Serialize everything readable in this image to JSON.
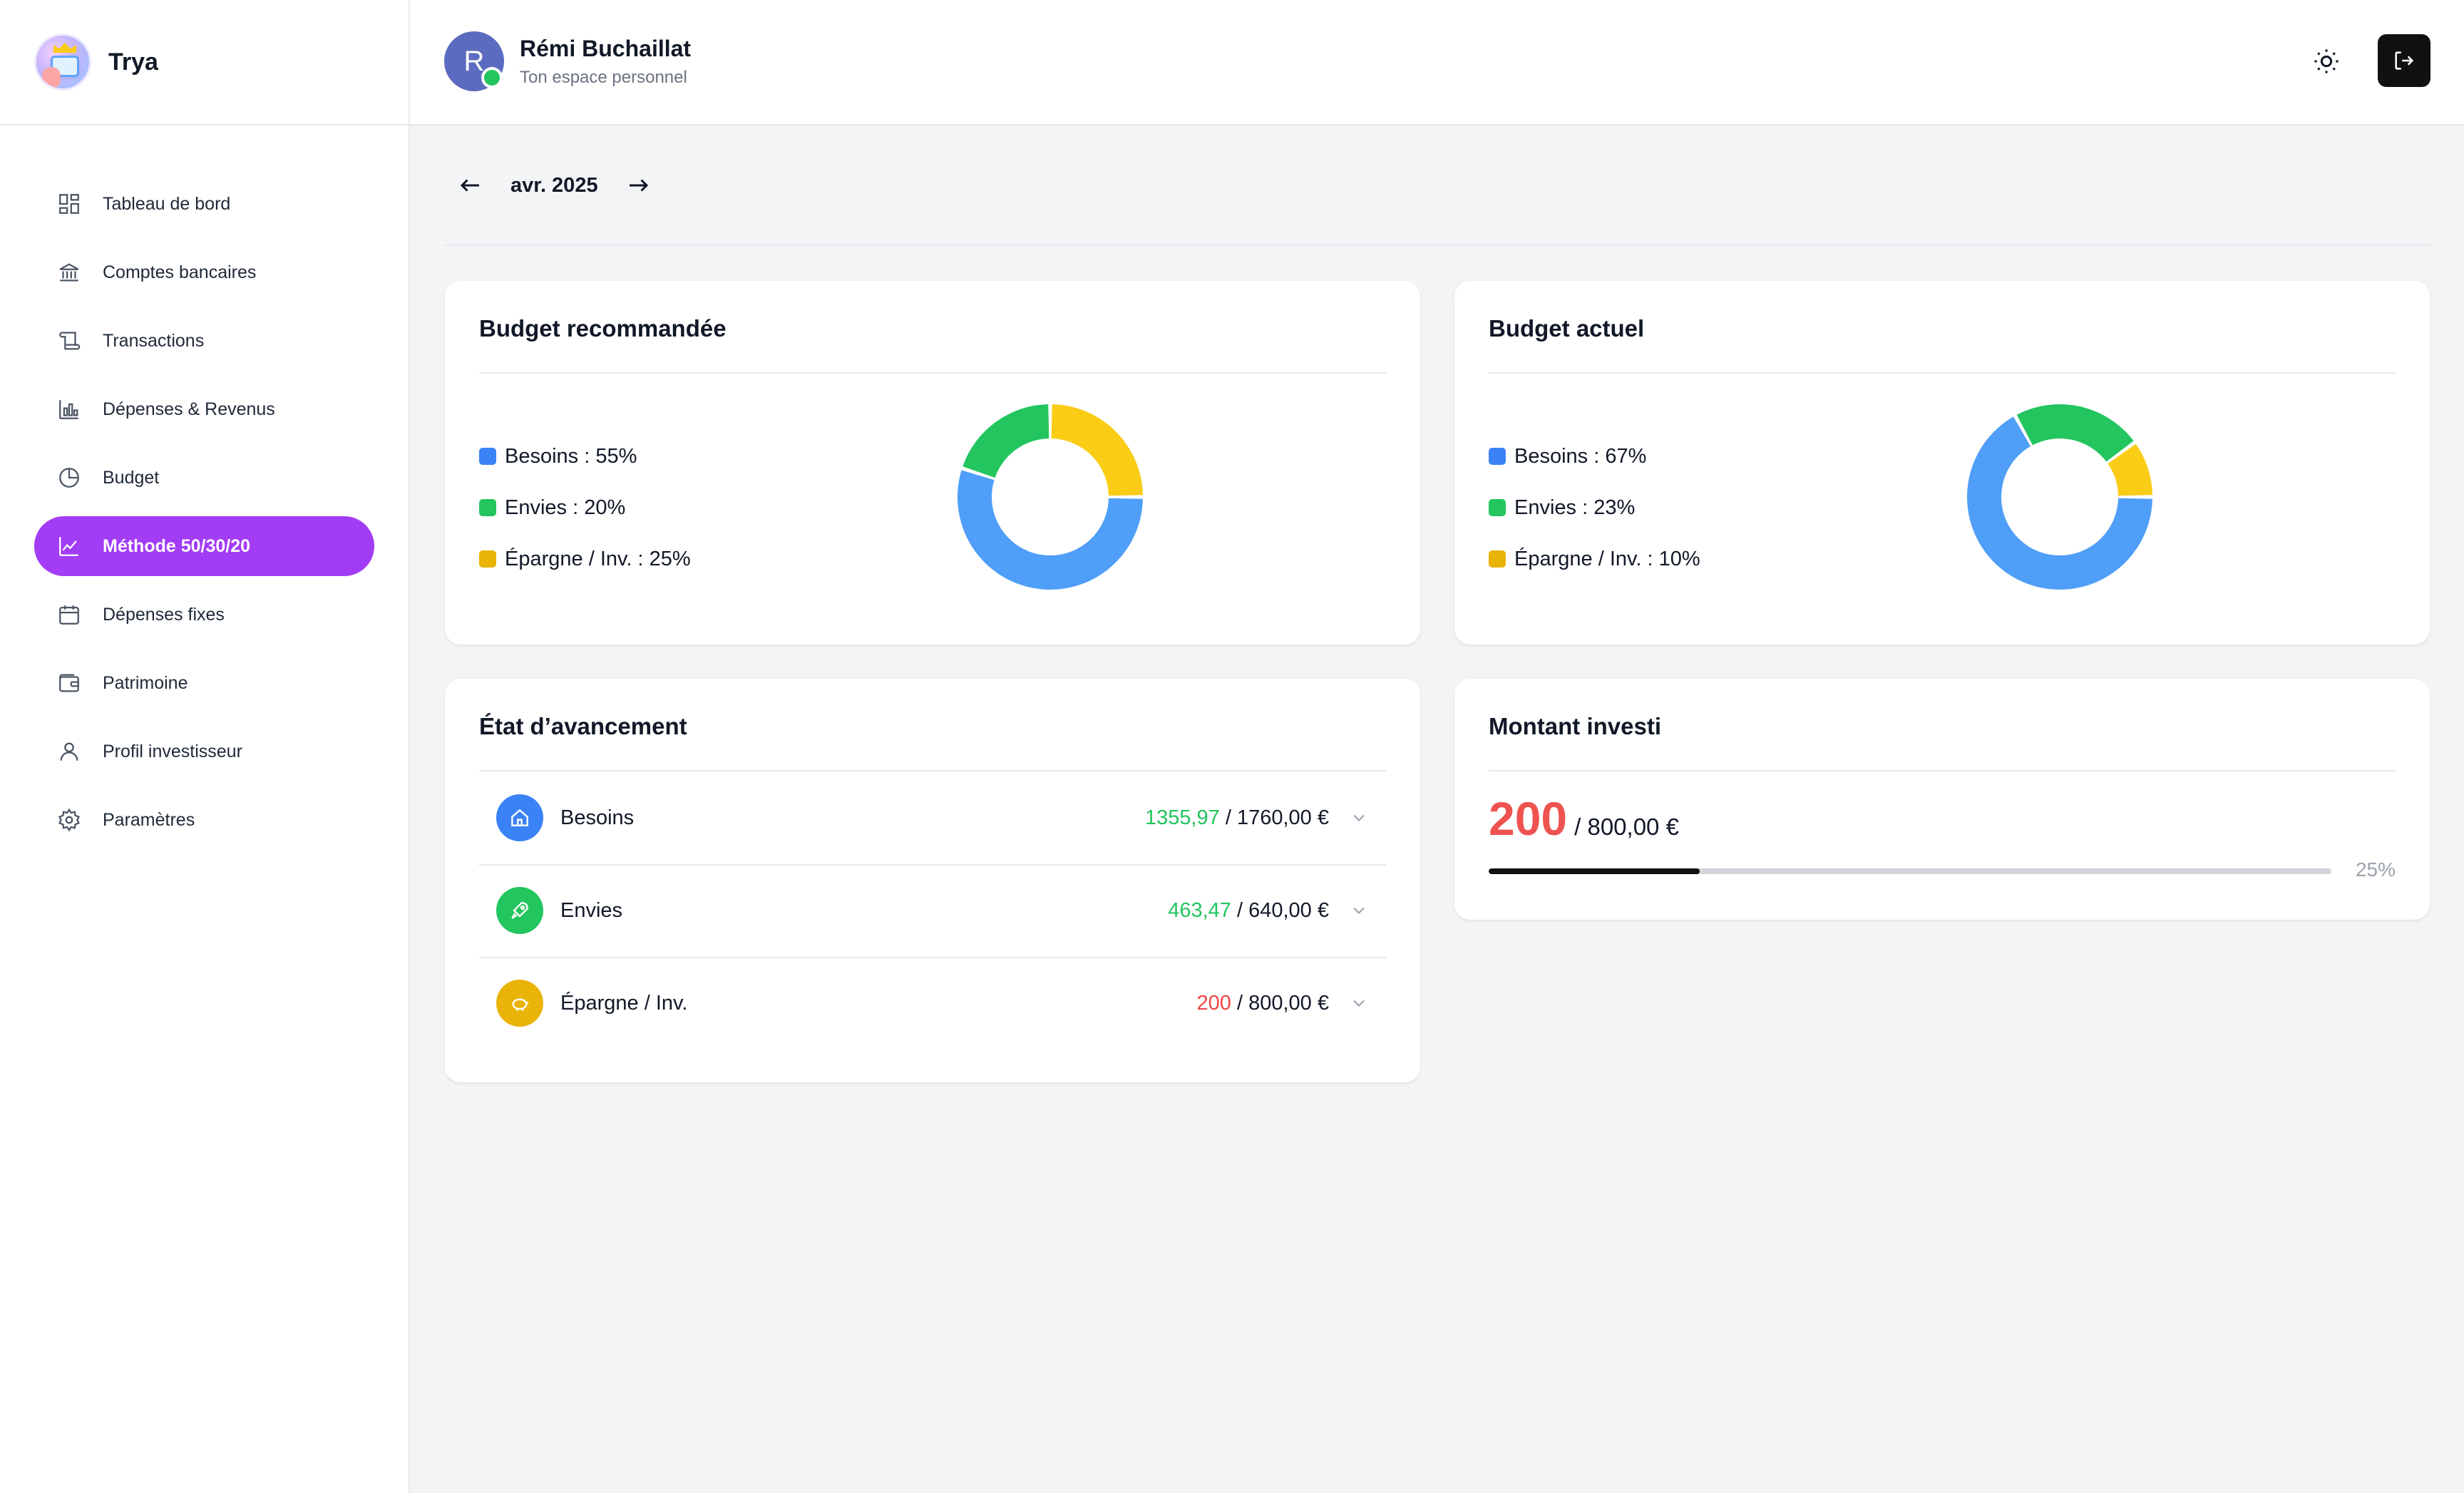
{
  "brand": {
    "name": "Trya"
  },
  "user": {
    "initial": "R",
    "name": "Rémi Buchaillat",
    "subtitle": "Ton espace personnel"
  },
  "nav": [
    {
      "label": "Tableau de bord",
      "icon": "dashboard-icon"
    },
    {
      "label": "Comptes bancaires",
      "icon": "bank-icon"
    },
    {
      "label": "Transactions",
      "icon": "scroll-icon"
    },
    {
      "label": "Dépenses & Revenus",
      "icon": "bar-chart-icon"
    },
    {
      "label": "Budget",
      "icon": "pie-chart-icon"
    },
    {
      "label": "Méthode 50/30/20",
      "icon": "line-chart-icon",
      "active": true
    },
    {
      "label": "Dépenses fixes",
      "icon": "calendar-icon"
    },
    {
      "label": "Patrimoine",
      "icon": "wallet-icon"
    },
    {
      "label": "Profil investisseur",
      "icon": "user-icon"
    },
    {
      "label": "Paramètres",
      "icon": "gear-icon"
    }
  ],
  "month": {
    "label": "avr. 2025",
    "prev": "←",
    "next": "→"
  },
  "colors": {
    "besoins": "#4f9ef8",
    "envies": "#22c55e",
    "epargne": "#facc15",
    "accent": "#a33cf5"
  },
  "recommended": {
    "title": "Budget recommandée",
    "legend": [
      "Besoins : 55%",
      "Envies : 20%",
      "Épargne / Inv. : 25%"
    ],
    "values": [
      55,
      20,
      25
    ]
  },
  "current": {
    "title": "Budget actuel",
    "legend": [
      "Besoins : 67%",
      "Envies : 23%",
      "Épargne / Inv. : 10%"
    ],
    "values": [
      67,
      23,
      10
    ]
  },
  "progress": {
    "title": "État d’avancement",
    "rows": [
      {
        "label": "Besoins",
        "spent": "1355,97",
        "total": " / 1760,00 €",
        "status": "green"
      },
      {
        "label": "Envies",
        "spent": "463,47",
        "total": " / 640,00 €",
        "status": "green"
      },
      {
        "label": "Épargne / Inv.",
        "spent": "200",
        "total": " / 800,00 €",
        "status": "red"
      }
    ]
  },
  "investment": {
    "title": "Montant investi",
    "amount": "200",
    "total": "/ 800,00 €",
    "percent_label": "25%",
    "percent": 25
  }
}
